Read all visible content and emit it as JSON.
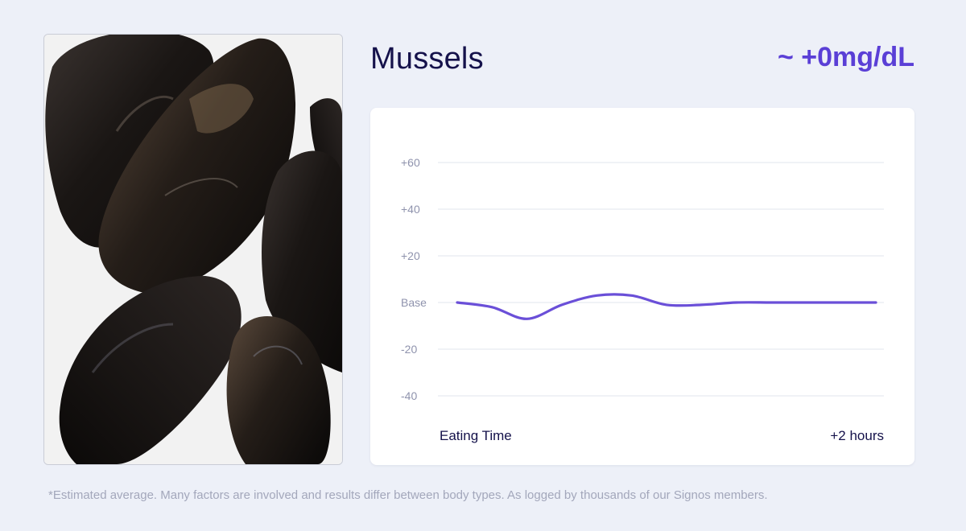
{
  "food": {
    "title": "Mussels",
    "image_icon": "mussels-photo"
  },
  "headline": "~ +0mg/dL",
  "footnote": "*Estimated average. Many factors are involved and results differ between body types. As logged by thousands of our Signos members.",
  "colors": {
    "line": "#6a4fd8",
    "headline": "#5a3fd6",
    "title": "#15124b",
    "grid": "#eceef4",
    "background": "#edf0f8"
  },
  "chart_data": {
    "type": "line",
    "title": "",
    "xlabel": "",
    "ylabel": "",
    "ylim": [
      -50,
      70
    ],
    "yticks": [
      {
        "value": 60,
        "label": "+60"
      },
      {
        "value": 40,
        "label": "+40"
      },
      {
        "value": 20,
        "label": "+20"
      },
      {
        "value": 0,
        "label": "Base"
      },
      {
        "value": -20,
        "label": "-20"
      },
      {
        "value": -40,
        "label": "-40"
      }
    ],
    "xlim": [
      0,
      120
    ],
    "x_tick_labels": {
      "start": "Eating Time",
      "end": "+2 hours"
    },
    "grid": true,
    "series": [
      {
        "x": [
          0,
          10,
          20,
          30,
          40,
          50,
          60,
          70,
          80,
          90,
          100,
          110,
          120
        ],
        "values": [
          0,
          -2,
          -7,
          -1,
          3,
          3,
          -1,
          -1,
          0,
          0,
          0,
          0,
          0
        ]
      }
    ]
  }
}
